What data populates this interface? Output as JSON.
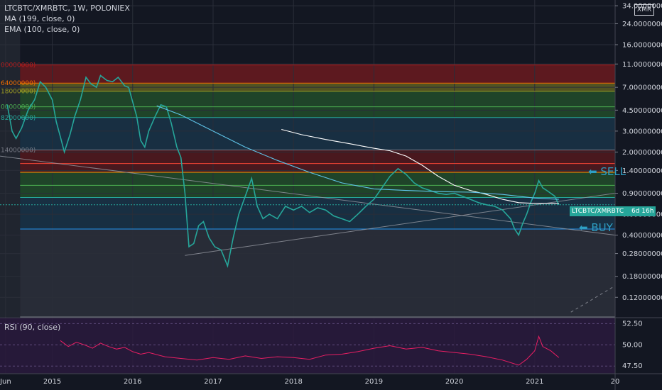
{
  "header": {
    "title": "LTCBTC/XMRBTC, 1W, POLONIEX",
    "ma_label": "MA (199, close, 0)",
    "ema_label": "EMA (100, close, 0)",
    "rsi_label": "RSI (90, close)",
    "currency_badge": "XMR"
  },
  "price_label": {
    "text": "LTCBTC/XMRBTC",
    "countdown": "6d 16h"
  },
  "annotations": {
    "sell": "SELL",
    "buy": "BUY"
  },
  "left_level_labels": [
    "00000000)",
    "64000000)",
    "18000000)",
    "00000000)",
    "82000000)",
    "14000000)"
  ],
  "chart_data": {
    "type": "line",
    "title": "LTCBTC/XMRBTC, 1W, POLONIEX",
    "price_scale": "log",
    "y_ticks": [
      "34.00000000",
      "24.00000000",
      "16.00000000",
      "11.00000000",
      "7.00000000",
      "4.50000000",
      "3.00000000",
      "2.00000000",
      "1.40000000",
      "0.90000000",
      "0.60000000",
      "0.40000000",
      "0.28000000",
      "0.18000000",
      "0.12000000"
    ],
    "y_tick_values": [
      34,
      24,
      16,
      11,
      7,
      4.5,
      3,
      2,
      1.4,
      0.9,
      0.6,
      0.4,
      0.28,
      0.18,
      0.12
    ],
    "x_ticks": [
      "Jun",
      "2015",
      "2016",
      "2017",
      "2018",
      "2019",
      "2020",
      "2021",
      "20"
    ],
    "x_tick_values": [
      2014.42,
      2015.0,
      2016.0,
      2017.0,
      2018.0,
      2019.0,
      2020.0,
      2021.0,
      2022.0
    ],
    "x_range": [
      2014.35,
      2022.0
    ],
    "y_range": [
      0.082,
      38
    ],
    "fib_levels": [
      {
        "value": 10.8,
        "color": "#b71c1c"
      },
      {
        "value": 7.6,
        "color": "#ef6c00"
      },
      {
        "value": 6.5,
        "color": "#9e9d24"
      },
      {
        "value": 4.8,
        "color": "#4caf50"
      },
      {
        "value": 3.9,
        "color": "#26a69a"
      },
      {
        "value": 2.08,
        "color": "#787b86"
      },
      {
        "value": 1.6,
        "color": "#f44336"
      },
      {
        "value": 1.35,
        "color": "#ff9800"
      },
      {
        "value": 1.05,
        "color": "#4caf50"
      },
      {
        "value": 0.83,
        "color": "#26a69a"
      },
      {
        "value": 0.45,
        "color": "#2196f3"
      },
      {
        "value": 0.082,
        "color": "#787b86"
      }
    ],
    "fib_zones": [
      {
        "from": 7.6,
        "to": 10.8,
        "color": "#b71c1c"
      },
      {
        "from": 6.5,
        "to": 7.6,
        "color": "#9e9d24"
      },
      {
        "from": 3.9,
        "to": 6.5,
        "color": "#2e7d32"
      },
      {
        "from": 2.08,
        "to": 3.9,
        "color": "#1e4d6b"
      },
      {
        "from": 1.35,
        "to": 2.08,
        "color": "#8b1a1a"
      },
      {
        "from": 0.83,
        "to": 1.35,
        "color": "#2e7d32"
      },
      {
        "from": 0.45,
        "to": 0.83,
        "color": "#1e4d6b"
      },
      {
        "from": 0.082,
        "to": 0.45,
        "color": "#434651"
      }
    ],
    "series": [
      {
        "name": "LTCBTC/XMRBTC",
        "color": "#26a69a",
        "x": [
          2014.44,
          2014.5,
          2014.55,
          2014.62,
          2014.7,
          2014.78,
          2014.85,
          2014.92,
          2015.0,
          2015.05,
          2015.1,
          2015.15,
          2015.22,
          2015.28,
          2015.35,
          2015.42,
          2015.48,
          2015.55,
          2015.6,
          2015.68,
          2015.75,
          2015.82,
          2015.9,
          2015.95,
          2016.05,
          2016.1,
          2016.15,
          2016.2,
          2016.28,
          2016.35,
          2016.42,
          2016.48,
          2016.55,
          2016.6,
          2016.65,
          2016.7,
          2016.76,
          2016.82,
          2016.88,
          2016.95,
          2017.02,
          2017.1,
          2017.18,
          2017.25,
          2017.32,
          2017.4,
          2017.48,
          2017.55,
          2017.62,
          2017.7,
          2017.8,
          2017.9,
          2018.0,
          2018.1,
          2018.2,
          2018.3,
          2018.4,
          2018.5,
          2018.6,
          2018.7,
          2018.8,
          2018.9,
          2019.0,
          2019.1,
          2019.2,
          2019.3,
          2019.4,
          2019.5,
          2019.6,
          2019.7,
          2019.8,
          2019.9,
          2020.0,
          2020.1,
          2020.2,
          2020.3,
          2020.4,
          2020.5,
          2020.6,
          2020.7,
          2020.75,
          2020.8,
          2020.85,
          2020.9,
          2020.95,
          2021.0,
          2021.05,
          2021.1,
          2021.15,
          2021.2,
          2021.25,
          2021.3
        ],
        "values": [
          5.0,
          3.0,
          2.6,
          3.2,
          4.5,
          5.5,
          7.8,
          7.0,
          5.5,
          3.6,
          2.7,
          2.0,
          2.8,
          4.0,
          5.5,
          8.5,
          7.5,
          7.0,
          8.8,
          8.0,
          7.8,
          8.5,
          7.2,
          7.0,
          4.0,
          2.5,
          2.2,
          3.0,
          4.0,
          5.0,
          4.8,
          3.5,
          2.2,
          1.8,
          0.9,
          0.32,
          0.34,
          0.48,
          0.52,
          0.38,
          0.32,
          0.3,
          0.22,
          0.38,
          0.6,
          0.85,
          1.2,
          0.7,
          0.55,
          0.6,
          0.55,
          0.7,
          0.65,
          0.7,
          0.62,
          0.68,
          0.65,
          0.58,
          0.55,
          0.52,
          0.6,
          0.7,
          0.8,
          1.0,
          1.25,
          1.45,
          1.3,
          1.1,
          1.0,
          0.95,
          0.9,
          0.88,
          0.9,
          0.85,
          0.8,
          0.75,
          0.72,
          0.7,
          0.65,
          0.55,
          0.45,
          0.4,
          0.5,
          0.6,
          0.75,
          0.9,
          1.15,
          1.0,
          0.95,
          0.9,
          0.85,
          0.72
        ]
      },
      {
        "name": "MA (199, close, 0)",
        "color": "#ffffff",
        "x": [
          2017.85,
          2018.1,
          2018.4,
          2018.7,
          2019.0,
          2019.2,
          2019.4,
          2019.6,
          2019.8,
          2020.0,
          2020.2,
          2020.4,
          2020.6,
          2020.8,
          2021.0,
          2021.2,
          2021.3
        ],
        "values": [
          3.1,
          2.8,
          2.55,
          2.35,
          2.15,
          2.05,
          1.85,
          1.55,
          1.25,
          1.05,
          0.95,
          0.88,
          0.8,
          0.75,
          0.74,
          0.74,
          0.74
        ]
      },
      {
        "name": "EMA (100, close, 0)",
        "color": "#5ec3e8",
        "x": [
          2016.3,
          2016.6,
          2017.0,
          2017.4,
          2017.8,
          2018.2,
          2018.6,
          2019.0,
          2019.4,
          2019.8,
          2020.2,
          2020.6,
          2021.0,
          2021.3
        ],
        "values": [
          4.9,
          4.1,
          3.0,
          2.2,
          1.7,
          1.35,
          1.1,
          0.98,
          0.95,
          0.93,
          0.92,
          0.88,
          0.82,
          0.8
        ]
      }
    ],
    "trendlines": [
      {
        "x": [
          2014.35,
          2022.0
        ],
        "values": [
          1.85,
          0.4
        ],
        "color": "#9598a1"
      },
      {
        "x": [
          2016.65,
          2022.0
        ],
        "values": [
          0.27,
          0.9
        ],
        "color": "#9598a1"
      },
      {
        "x": [
          2021.45,
          2022.0
        ],
        "values": [
          0.09,
          0.15
        ],
        "color": "#9598a1",
        "dashed": true
      }
    ],
    "last_value": 0.72,
    "rsi": {
      "name": "RSI (90, close)",
      "ticks": [
        "52.50",
        "50.00",
        "47.50"
      ],
      "tick_values": [
        52.5,
        50.0,
        47.5
      ],
      "range": [
        46.6,
        53.2
      ],
      "color": "#e91e63",
      "x": [
        2015.1,
        2015.2,
        2015.3,
        2015.4,
        2015.5,
        2015.6,
        2015.7,
        2015.8,
        2015.9,
        2016.0,
        2016.1,
        2016.2,
        2016.4,
        2016.6,
        2016.8,
        2017.0,
        2017.2,
        2017.4,
        2017.6,
        2017.8,
        2018.0,
        2018.2,
        2018.4,
        2018.6,
        2018.8,
        2019.0,
        2019.2,
        2019.4,
        2019.6,
        2019.8,
        2020.0,
        2020.2,
        2020.4,
        2020.6,
        2020.8,
        2020.9,
        2021.0,
        2021.05,
        2021.1,
        2021.2,
        2021.3
      ],
      "values": [
        50.5,
        49.8,
        50.3,
        50.0,
        49.6,
        50.2,
        49.8,
        49.5,
        49.7,
        49.2,
        48.9,
        49.1,
        48.6,
        48.4,
        48.2,
        48.5,
        48.3,
        48.7,
        48.4,
        48.6,
        48.5,
        48.3,
        48.8,
        48.9,
        49.2,
        49.6,
        49.9,
        49.5,
        49.7,
        49.3,
        49.1,
        48.9,
        48.6,
        48.2,
        47.6,
        48.3,
        49.3,
        51.0,
        49.8,
        49.3,
        48.5
      ]
    }
  }
}
